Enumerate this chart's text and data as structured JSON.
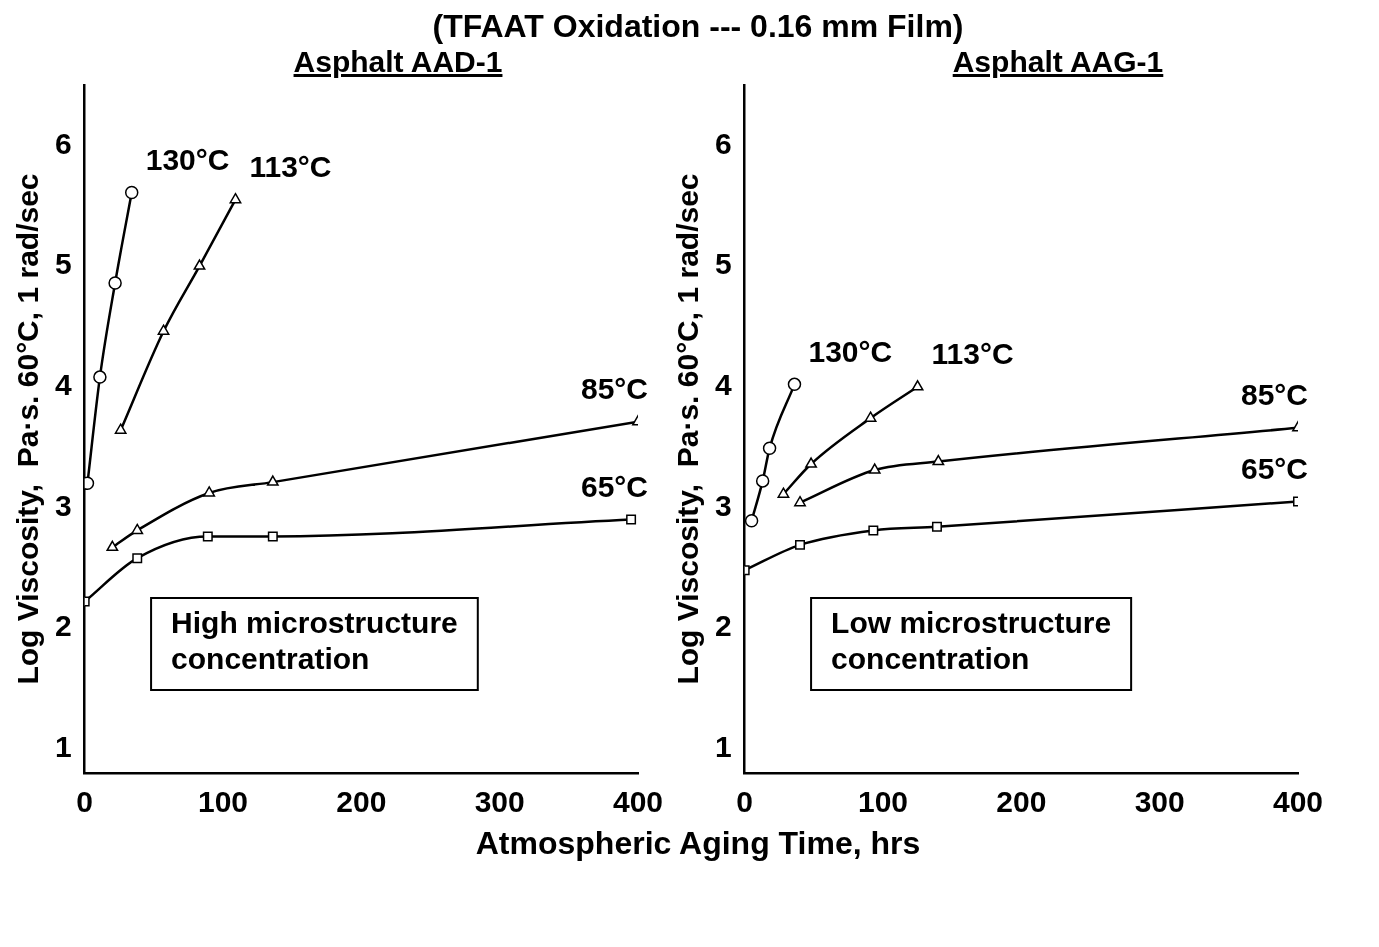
{
  "chart_data": [
    {
      "type": "line",
      "title": "(TFAAT Oxidation --- 0.16 mm Film)",
      "subtitle": "Asphalt AAD-1",
      "xlabel": "Atmospheric Aging Time, hrs",
      "ylabel": "Log Viscosity,  Pa·s. 60°C, 1 rad/sec",
      "annotations": [
        "High microstructure\nconcentration"
      ],
      "xlim": [
        0,
        400
      ],
      "xticks": [
        0,
        100,
        200,
        300,
        400
      ],
      "ylim": [
        0.8,
        6.5
      ],
      "yticks": [
        1,
        2,
        3,
        4,
        5,
        6
      ],
      "grid": false,
      "legend": false,
      "series": [
        {
          "name": "130°C",
          "color": "#000000",
          "marker": "circle",
          "x": [
            2,
            11,
            22,
            34
          ],
          "values": [
            3.2,
            4.08,
            4.86,
            5.61
          ]
        },
        {
          "name": "113°C",
          "color": "#000000",
          "marker": "triangle",
          "x": [
            26,
            57,
            83,
            109
          ],
          "values": [
            3.64,
            4.46,
            5.0,
            5.55
          ]
        },
        {
          "name": "85°C",
          "color": "#000000",
          "marker": "triangle",
          "x": [
            20,
            38,
            90,
            136,
            400
          ],
          "values": [
            2.67,
            2.81,
            3.12,
            3.21,
            3.71
          ]
        },
        {
          "name": "65°C",
          "color": "#000000",
          "marker": "square",
          "x": [
            0,
            38,
            89,
            136,
            395
          ],
          "values": [
            2.22,
            2.58,
            2.76,
            2.76,
            2.9
          ]
        }
      ]
    },
    {
      "type": "line",
      "subtitle": "Asphalt AAG-1",
      "ylabel": "Log Viscosity,  Pa·s. 60°C, 1 rad/sec",
      "annotations": [
        "Low microstructure\nconcentration"
      ],
      "xlim": [
        0,
        400
      ],
      "xticks": [
        0,
        100,
        200,
        300,
        400
      ],
      "ylim": [
        0.8,
        6.5
      ],
      "yticks": [
        1,
        2,
        3,
        4,
        5,
        6
      ],
      "grid": false,
      "legend": false,
      "series": [
        {
          "name": "130°C",
          "color": "#000000",
          "marker": "circle",
          "x": [
            5,
            13,
            18,
            36
          ],
          "values": [
            2.89,
            3.22,
            3.49,
            4.02
          ]
        },
        {
          "name": "113°C",
          "color": "#000000",
          "marker": "triangle",
          "x": [
            28,
            48,
            91,
            125
          ],
          "values": [
            3.11,
            3.36,
            3.74,
            4.0
          ]
        },
        {
          "name": "85°C",
          "color": "#000000",
          "marker": "triangle",
          "x": [
            40,
            94,
            140,
            400
          ],
          "values": [
            3.04,
            3.31,
            3.38,
            3.66
          ]
        },
        {
          "name": "65°C",
          "color": "#000000",
          "marker": "square",
          "x": [
            0,
            40,
            93,
            139,
            400
          ],
          "values": [
            2.48,
            2.69,
            2.81,
            2.84,
            3.05
          ]
        }
      ]
    }
  ]
}
